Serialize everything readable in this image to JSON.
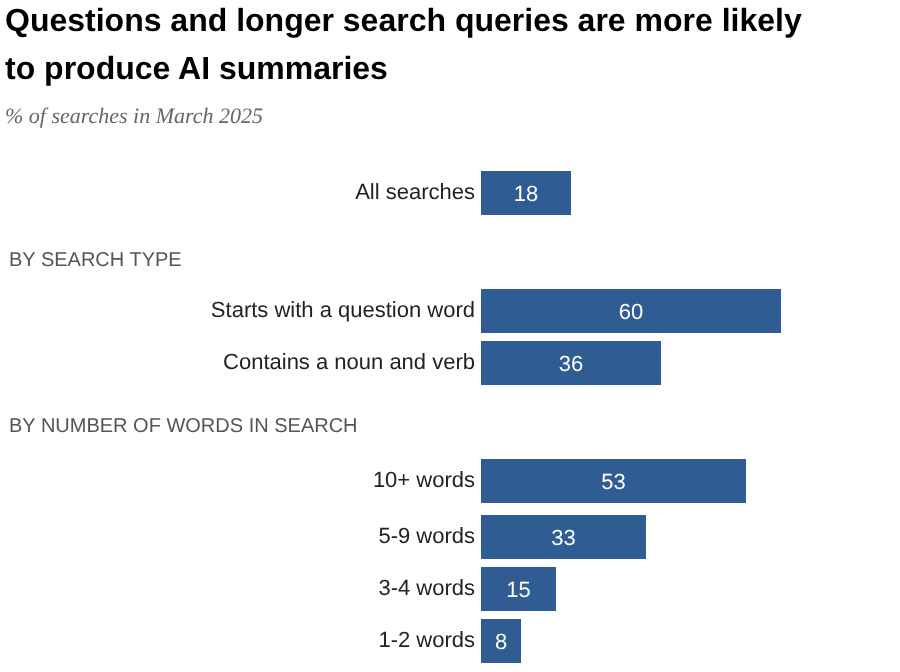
{
  "chart_data": {
    "type": "bar",
    "orientation": "horizontal",
    "title": "Questions and longer search queries are more likely to produce AI summaries",
    "subtitle": "% of searches in March 2025",
    "categories": [
      "All searches",
      "Starts with a question word",
      "Contains a noun and verb",
      "10+ words",
      "5-9 words",
      "3-4 words",
      "1-2 words"
    ],
    "values": [
      18,
      60,
      36,
      53,
      33,
      15,
      8
    ],
    "color": "#2e5c93",
    "data_labels": true,
    "annotations": [
      "BY SEARCH TYPE",
      "BY NUMBER OF WORDS IN SEARCH"
    ]
  }
}
